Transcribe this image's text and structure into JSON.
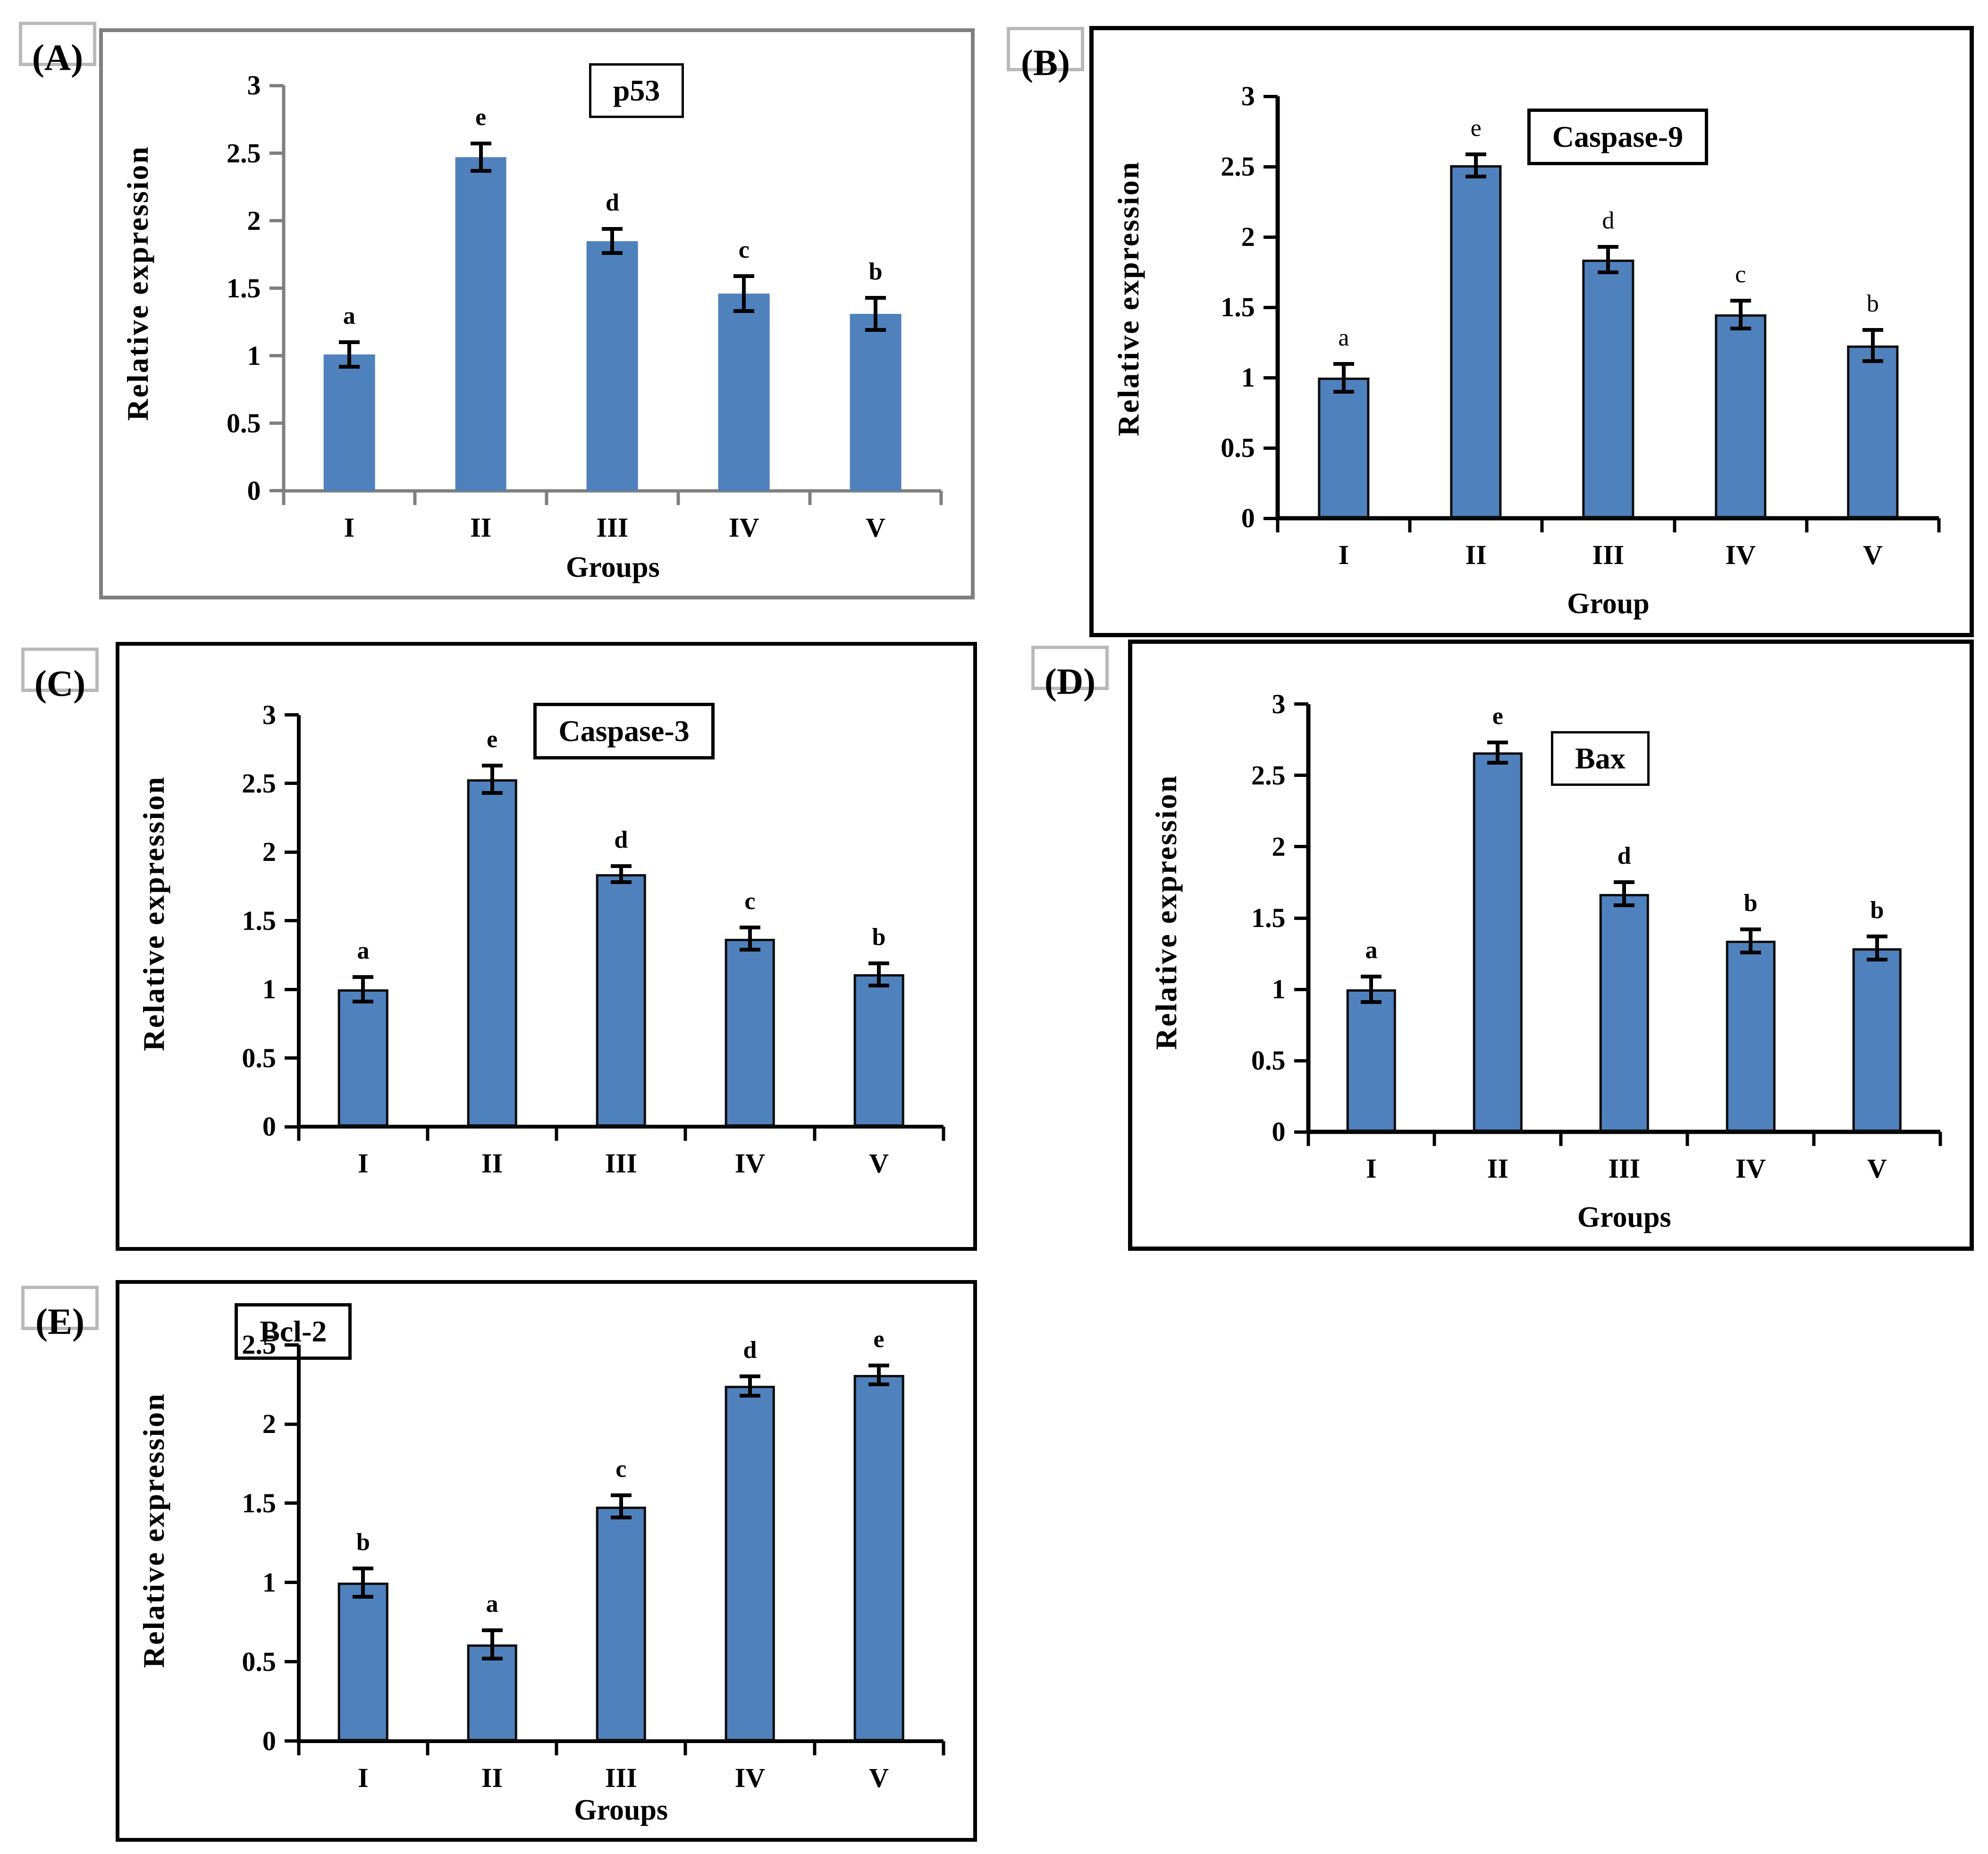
{
  "colors": {
    "bar_fill": "#4F81BD",
    "bar_border": "#0d0d0d",
    "error_bar": "#000000",
    "axis_grey": "#7f7f7f",
    "axis_black": "#000000",
    "panel_label_border": "#b9b9b9"
  },
  "chart_data": [
    {
      "type": "bar",
      "panel_label": "(A)",
      "title": "p53",
      "ylabel": "Relative expression",
      "xlabel": "Groups",
      "categories": [
        "I",
        "II",
        "III",
        "IV",
        "V"
      ],
      "values": [
        1.01,
        2.47,
        1.85,
        1.46,
        1.31
      ],
      "errors": [
        0.09,
        0.1,
        0.09,
        0.13,
        0.12
      ],
      "sig_letters": [
        "a",
        "e",
        "d",
        "c",
        "b"
      ],
      "ylim": [
        0,
        3
      ],
      "ystep": 0.5,
      "grid": false,
      "legend": "none",
      "bar_fill": "#4F81BD"
    },
    {
      "type": "bar",
      "panel_label": "(B)",
      "title": "Caspase-9",
      "ylabel": "Relative expression",
      "xlabel": "Group",
      "categories": [
        "I",
        "II",
        "III",
        "IV",
        "V"
      ],
      "values": [
        1.0,
        2.51,
        1.84,
        1.45,
        1.23
      ],
      "errors": [
        0.1,
        0.08,
        0.09,
        0.1,
        0.11
      ],
      "sig_letters": [
        "a",
        "e",
        "d",
        "c",
        "b"
      ],
      "ylim": [
        0,
        3
      ],
      "ystep": 0.5,
      "grid": false,
      "legend": "none",
      "bar_fill": "#4F81BD"
    },
    {
      "type": "bar",
      "panel_label": "(C)",
      "title": "Caspase-3",
      "ylabel": "Relative expression",
      "xlabel": "",
      "categories": [
        "I",
        "II",
        "III",
        "IV",
        "V"
      ],
      "values": [
        1.0,
        2.53,
        1.84,
        1.37,
        1.11
      ],
      "errors": [
        0.09,
        0.1,
        0.06,
        0.08,
        0.08
      ],
      "sig_letters": [
        "a",
        "e",
        "d",
        "c",
        "b"
      ],
      "ylim": [
        0,
        3
      ],
      "ystep": 0.5,
      "grid": false,
      "legend": "none",
      "bar_fill": "#4F81BD"
    },
    {
      "type": "bar",
      "panel_label": "(D)",
      "title": "Bax",
      "ylabel": "Relative expression",
      "xlabel": "Groups",
      "categories": [
        "I",
        "II",
        "III",
        "IV",
        "V"
      ],
      "values": [
        1.0,
        2.66,
        1.67,
        1.34,
        1.29
      ],
      "errors": [
        0.09,
        0.07,
        0.08,
        0.08,
        0.08
      ],
      "sig_letters": [
        "a",
        "e",
        "d",
        "b",
        "b"
      ],
      "ylim": [
        0,
        3
      ],
      "ystep": 0.5,
      "grid": false,
      "legend": "none",
      "bar_fill": "#4F81BD"
    },
    {
      "type": "bar",
      "panel_label": "(E)",
      "title": "Bcl-2",
      "ylabel": "Relative expression",
      "xlabel": "Groups",
      "categories": [
        "I",
        "II",
        "III",
        "IV",
        "V"
      ],
      "values": [
        1.0,
        0.61,
        1.48,
        2.24,
        2.31
      ],
      "errors": [
        0.09,
        0.09,
        0.07,
        0.06,
        0.06
      ],
      "sig_letters": [
        "b",
        "a",
        "c",
        "d",
        "e"
      ],
      "ylim": [
        0,
        2.5
      ],
      "ystep": 0.5,
      "grid": false,
      "legend": "none",
      "bar_fill": "#4F81BD"
    }
  ]
}
